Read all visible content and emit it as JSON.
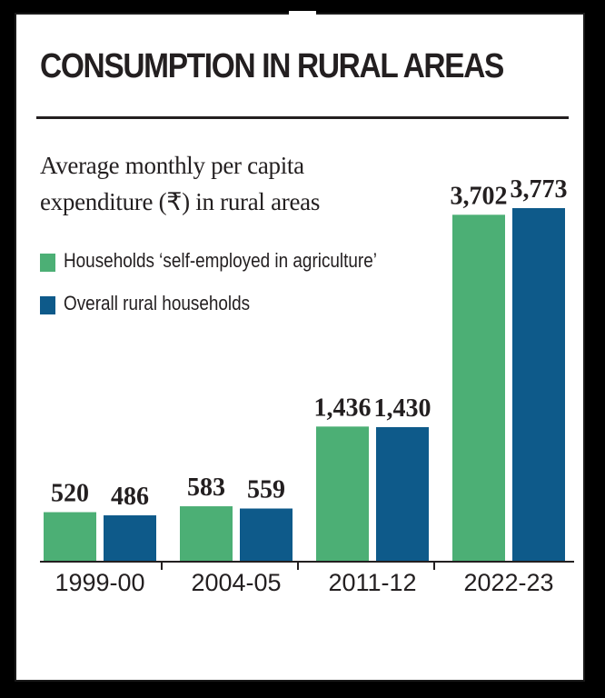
{
  "title": "CONSUMPTION IN RURAL AREAS",
  "subtitle_lines": [
    "Average monthly per capita",
    "expenditure (₹) in rural areas"
  ],
  "colors": {
    "agriculture": "#4caf75",
    "overall": "#0e5a8a",
    "text": "#231f20",
    "background": "#ffffff"
  },
  "chart_data": {
    "type": "bar",
    "title": "CONSUMPTION IN RURAL AREAS",
    "subtitle": "Average monthly per capita expenditure (₹) in rural areas",
    "xlabel": "",
    "ylabel": "",
    "categories": [
      "1999-00",
      "2004-05",
      "2011-12",
      "2022-23"
    ],
    "series": [
      {
        "name": "Households ‘self-employed in agriculture’",
        "color": "#4caf75",
        "values": [
          520,
          583,
          1436,
          3702
        ],
        "labels": [
          "520",
          "583",
          "1,436",
          "3,702"
        ]
      },
      {
        "name": "Overall rural households",
        "color": "#0e5a8a",
        "values": [
          486,
          559,
          1430,
          3773
        ],
        "labels": [
          "486",
          "559",
          "1,430",
          "3,773"
        ]
      }
    ],
    "ylim": [
      0,
      3773
    ],
    "grid": false,
    "legend": "top-left"
  }
}
